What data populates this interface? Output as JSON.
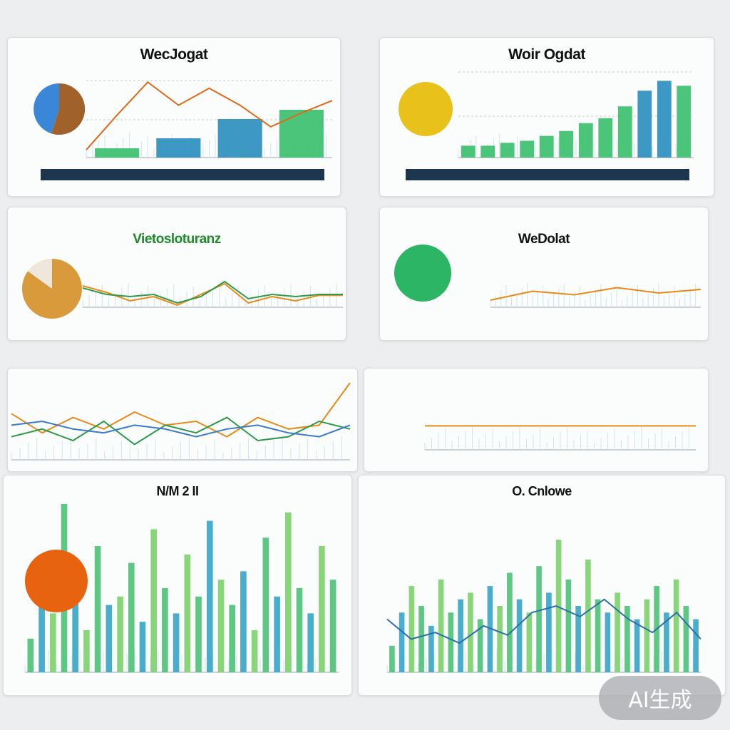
{
  "cards": [
    {
      "title": "WecJogat",
      "title_color": "#111111"
    },
    {
      "title": "Woir Ogdat",
      "title_color": "#111111"
    },
    {
      "title": "Vietosloturanz",
      "title_color": "#1e8a2a"
    },
    {
      "title": "WeDolat",
      "title_color": "#111111"
    },
    {
      "title": "",
      "title_color": "#111111"
    },
    {
      "title": "",
      "title_color": "#111111"
    },
    {
      "title": "N/M 2 II",
      "title_color": "#111111"
    },
    {
      "title": "O. Cnlowe",
      "title_color": "#111111"
    }
  ],
  "watermark": "AI生成",
  "colors": {
    "teal": "#3aa6c8",
    "green": "#3cc06e",
    "orange": "#e86a12",
    "yellow": "#e8c21a",
    "navy": "#1e3550",
    "brown": "#a0622a",
    "gold": "#d89a3a"
  },
  "chart_data": [
    {
      "type": "bar",
      "panel": 1,
      "values": [
        12,
        25,
        50,
        62
      ],
      "line": [
        10,
        55,
        98,
        68,
        90,
        68,
        40,
        58,
        74
      ],
      "pie": [
        {
          "share": 0.55,
          "color": "#a0622a"
        },
        {
          "share": 0.45,
          "color": "#3a86d8"
        }
      ],
      "ylim": [
        0,
        100
      ]
    },
    {
      "type": "bar",
      "panel": 2,
      "values": [
        12,
        12,
        15,
        17,
        22,
        27,
        35,
        40,
        52,
        68,
        78,
        73
      ],
      "pie": [
        {
          "share": 1,
          "color": "#e8c21a"
        }
      ],
      "ylim": [
        0,
        100
      ]
    },
    {
      "type": "line",
      "panel": 3,
      "series": [
        {
          "values": [
            50,
            35,
            15,
            25,
            5,
            30,
            55,
            10,
            25,
            15,
            28,
            28
          ]
        },
        {
          "values": [
            45,
            30,
            25,
            30,
            10,
            25,
            60,
            20,
            30,
            25,
            30,
            30
          ]
        }
      ],
      "pie": [
        {
          "share": 0.85,
          "color": "#d89a3a"
        },
        {
          "share": 0.15,
          "color": "#efe6dc"
        }
      ],
      "ylim": [
        0,
        100
      ]
    },
    {
      "type": "line",
      "panel": 4,
      "series": [
        {
          "values": [
            20,
            45,
            35,
            55,
            40,
            50
          ]
        }
      ],
      "pie": [
        {
          "share": 1,
          "color": "#2bb565"
        }
      ],
      "ylim": [
        0,
        100
      ]
    },
    {
      "type": "line",
      "panel": 5,
      "series": [
        {
          "values": [
            60,
            35,
            55,
            40,
            62,
            45,
            50,
            30,
            55,
            40,
            45,
            100
          ]
        },
        {
          "values": [
            30,
            40,
            25,
            50,
            20,
            45,
            35,
            55,
            25,
            30,
            50,
            40
          ]
        },
        {
          "values": [
            45,
            50,
            40,
            35,
            45,
            40,
            30,
            40,
            45,
            35,
            30,
            45
          ]
        }
      ],
      "ylim": [
        0,
        100
      ]
    },
    {
      "type": "line",
      "panel": 6,
      "series": [
        {
          "values": [
            40,
            40,
            40,
            40,
            40,
            40,
            40
          ]
        }
      ],
      "ylim": [
        0,
        100
      ]
    },
    {
      "type": "bar",
      "panel": 7,
      "values": [
        20,
        55,
        35,
        100,
        60,
        25,
        75,
        40,
        45,
        65,
        30,
        85,
        50,
        35,
        70,
        45,
        90,
        55,
        40,
        60,
        25,
        80,
        45,
        95,
        50,
        35,
        75,
        55
      ],
      "pie": [
        {
          "share": 1,
          "color": "#e8630f"
        }
      ],
      "ylim": [
        0,
        100
      ]
    },
    {
      "type": "bar",
      "panel": 8,
      "values": [
        20,
        45,
        65,
        50,
        35,
        70,
        45,
        55,
        60,
        40,
        65,
        50,
        75,
        55,
        45,
        80,
        60,
        100,
        70,
        50,
        85,
        55,
        45,
        60,
        50,
        40,
        55,
        65,
        45,
        70,
        50,
        40
      ],
      "line": [
        40,
        25,
        30,
        22,
        35,
        28,
        45,
        50,
        42,
        55,
        40,
        30,
        45,
        25
      ],
      "ylim": [
        0,
        100
      ]
    }
  ]
}
